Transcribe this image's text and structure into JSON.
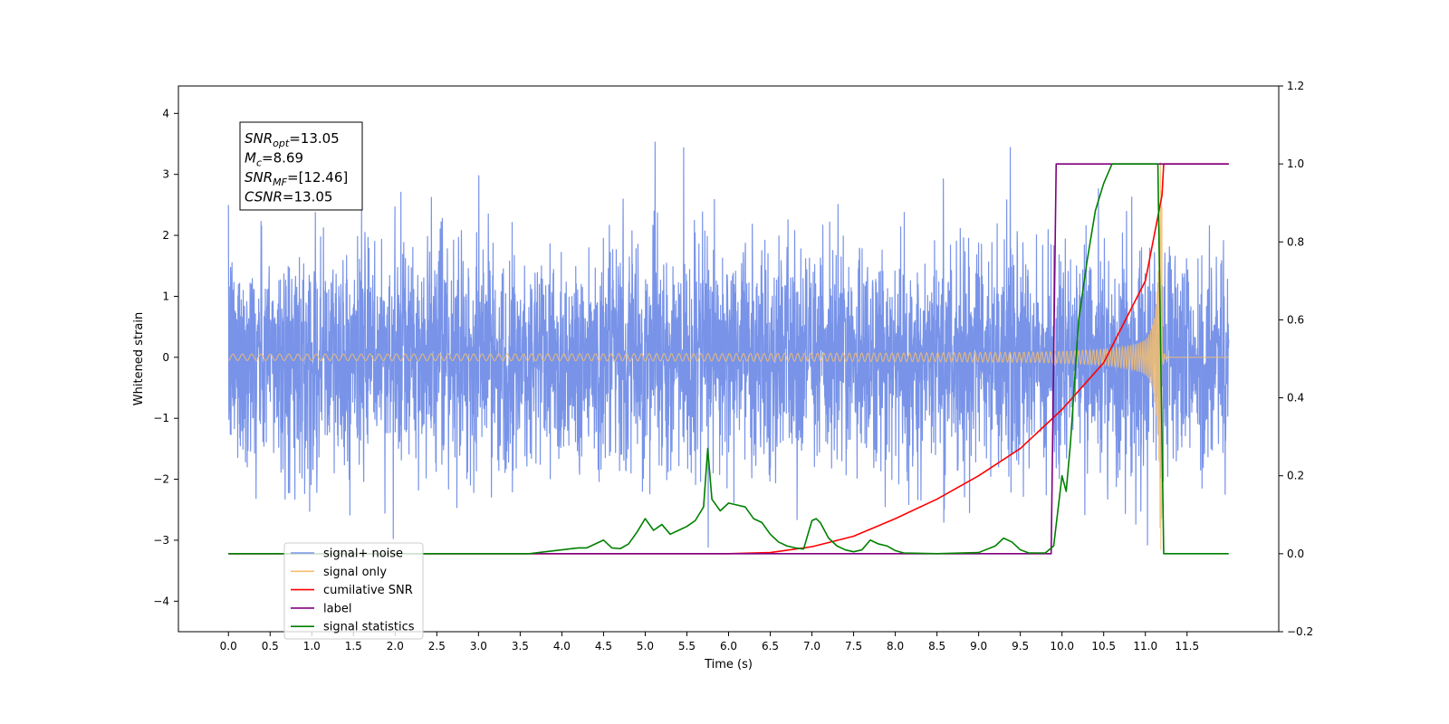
{
  "chart_data": {
    "type": "line",
    "xlabel": "Time (s)",
    "ylabel_left": "Whitened strain",
    "ylim_left": [
      -4.5,
      4.45
    ],
    "ylim_right": [
      -0.2,
      1.2
    ],
    "xlim": [
      -0.6,
      12.6
    ],
    "x_ticks": [
      0.0,
      0.5,
      1.0,
      1.5,
      2.0,
      2.5,
      3.0,
      3.5,
      4.0,
      4.5,
      5.0,
      5.5,
      6.0,
      6.5,
      7.0,
      7.5,
      8.0,
      8.5,
      9.0,
      9.5,
      10.0,
      10.5,
      11.0,
      11.5
    ],
    "x_tick_labels": [
      "0.0",
      "0.5",
      "1.0",
      "1.5",
      "2.0",
      "2.5",
      "3.0",
      "3.5",
      "4.0",
      "4.5",
      "5.0",
      "5.5",
      "6.0",
      "6.5",
      "7.0",
      "7.5",
      "8.0",
      "8.5",
      "9.0",
      "9.5",
      "10.0",
      "10.5",
      "11.0",
      "11.5"
    ],
    "y_left_ticks": [
      -4,
      -3,
      -2,
      -1,
      0,
      1,
      2,
      3,
      4
    ],
    "y_left_tick_labels": [
      "−4",
      "−3",
      "−2",
      "−1",
      "0",
      "1",
      "2",
      "3",
      "4"
    ],
    "y_right_ticks": [
      -0.2,
      0.0,
      0.2,
      0.4,
      0.6,
      0.8,
      1.0,
      1.2
    ],
    "y_right_tick_labels": [
      "−0.2",
      "0.0",
      "0.2",
      "0.4",
      "0.6",
      "0.8",
      "1.0",
      "1.2"
    ],
    "grid": false,
    "legend_position": "bottom-left",
    "annotation": [
      {
        "sym": "SNR",
        "sub": "opt",
        "value": "=13.05"
      },
      {
        "sym": "M",
        "sub": "c",
        "value": "=8.69"
      },
      {
        "sym": "SNR",
        "sub": "MF",
        "value": "=[12.46]"
      },
      {
        "sym": "CSNR",
        "sub": "",
        "value": "=13.05"
      }
    ],
    "series": [
      {
        "name": "signal+ noise",
        "color": "#7893e8",
        "axis": "left",
        "kind": "noise",
        "x_range": [
          0.0,
          12.0
        ],
        "noise_std": 1.0
      },
      {
        "name": "signal only",
        "color": "#f5be6e",
        "axis": "left",
        "kind": "chirp",
        "x_range": [
          0.0,
          11.2
        ],
        "peak_amplitude": 3.2,
        "merge_time": 11.2
      },
      {
        "name": "cumilative SNR",
        "color": "#ff0000",
        "axis": "right",
        "kind": "line",
        "x": [
          0.0,
          6.0,
          6.5,
          7.0,
          7.5,
          8.0,
          8.5,
          9.0,
          9.5,
          10.0,
          10.5,
          11.0,
          11.2,
          11.22,
          12.0
        ],
        "y": [
          0.0,
          0.0,
          0.003,
          0.018,
          0.045,
          0.09,
          0.14,
          0.2,
          0.27,
          0.37,
          0.49,
          0.7,
          0.92,
          1.0,
          1.0
        ]
      },
      {
        "name": "label",
        "color": "#800080",
        "axis": "right",
        "kind": "line",
        "x": [
          0.0,
          9.87,
          9.93,
          11.18,
          11.22,
          12.0
        ],
        "y": [
          0.0,
          0.0,
          1.0,
          1.0,
          1.0,
          1.0
        ]
      },
      {
        "name": "signal statistics",
        "color": "#008000",
        "axis": "right",
        "kind": "line",
        "x": [
          0.0,
          3.6,
          3.8,
          4.0,
          4.2,
          4.3,
          4.5,
          4.6,
          4.7,
          4.8,
          4.9,
          5.0,
          5.1,
          5.2,
          5.3,
          5.4,
          5.5,
          5.6,
          5.7,
          5.75,
          5.8,
          5.9,
          6.0,
          6.1,
          6.2,
          6.3,
          6.4,
          6.5,
          6.6,
          6.7,
          6.8,
          6.9,
          7.0,
          7.05,
          7.1,
          7.2,
          7.3,
          7.4,
          7.5,
          7.6,
          7.7,
          7.8,
          7.9,
          8.0,
          8.1,
          8.5,
          9.0,
          9.2,
          9.3,
          9.4,
          9.5,
          9.6,
          9.8,
          9.9,
          10.0,
          10.05,
          10.1,
          10.2,
          10.3,
          10.4,
          10.5,
          10.6,
          11.0,
          11.15,
          11.22,
          11.5,
          12.0
        ],
        "y": [
          0.0,
          0.0,
          0.005,
          0.01,
          0.015,
          0.015,
          0.035,
          0.015,
          0.013,
          0.025,
          0.055,
          0.09,
          0.06,
          0.075,
          0.05,
          0.06,
          0.07,
          0.085,
          0.12,
          0.27,
          0.14,
          0.11,
          0.13,
          0.125,
          0.12,
          0.09,
          0.08,
          0.05,
          0.03,
          0.02,
          0.015,
          0.012,
          0.085,
          0.09,
          0.08,
          0.04,
          0.02,
          0.01,
          0.005,
          0.01,
          0.035,
          0.025,
          0.02,
          0.008,
          0.002,
          0.0,
          0.003,
          0.02,
          0.04,
          0.03,
          0.01,
          0.002,
          0.002,
          0.02,
          0.2,
          0.16,
          0.28,
          0.6,
          0.75,
          0.88,
          0.95,
          1.0,
          1.0,
          1.0,
          0.0,
          0.0,
          0.0
        ]
      }
    ]
  }
}
